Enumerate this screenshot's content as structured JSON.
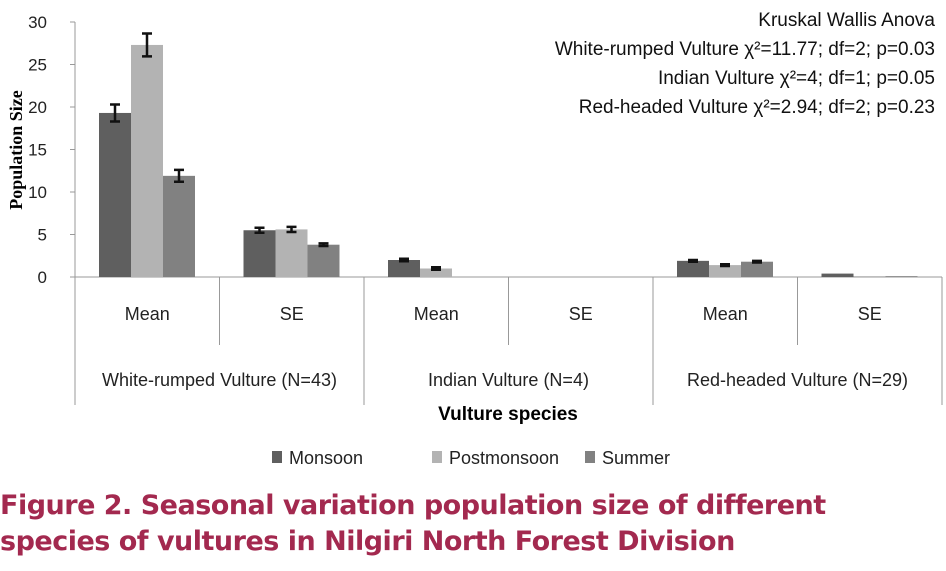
{
  "chart_data": {
    "type": "bar",
    "ylabel": "Population Size",
    "xlabel": "Vulture species",
    "ylim": [
      0,
      30
    ],
    "yticks": [
      0,
      5,
      10,
      15,
      20,
      25,
      30
    ],
    "categories": [
      "Mean",
      "SE",
      "Mean",
      "SE",
      "Mean",
      "SE"
    ],
    "groups": [
      "White-rumped Vulture (N=43)",
      "Indian Vulture (N=4)",
      "Red-headed Vulture (N=29)"
    ],
    "series": [
      {
        "name": "Monsoon",
        "color": "#5f5f5f",
        "values": [
          19.3,
          5.5,
          2.0,
          0,
          1.9,
          0.4
        ],
        "errors": [
          1.0,
          0.3,
          0.15,
          0,
          0.1,
          0
        ]
      },
      {
        "name": "Postmonsoon",
        "color": "#b3b3b3",
        "values": [
          27.3,
          5.6,
          1.0,
          0,
          1.4,
          0.1
        ],
        "errors": [
          1.35,
          0.3,
          0.15,
          0,
          0.1,
          0
        ]
      },
      {
        "name": "Summer",
        "color": "#818181",
        "values": [
          11.9,
          3.8,
          0,
          0,
          1.8,
          0.1
        ],
        "errors": [
          0.7,
          0.15,
          0,
          0,
          0.1,
          0
        ]
      }
    ],
    "legend": "bottom",
    "annotations": [
      "Kruskal Wallis Anova",
      "White-rumped Vulture χ²=11.77; df=2; p=0.03",
      "Indian Vulture χ²=4; df=1; p=0.05",
      "Red-headed Vulture χ²=2.94; df=2; p=0.23"
    ]
  },
  "caption": "Figure 2. Seasonal variation population size of different species of vultures in Nilgiri North Forest Division"
}
